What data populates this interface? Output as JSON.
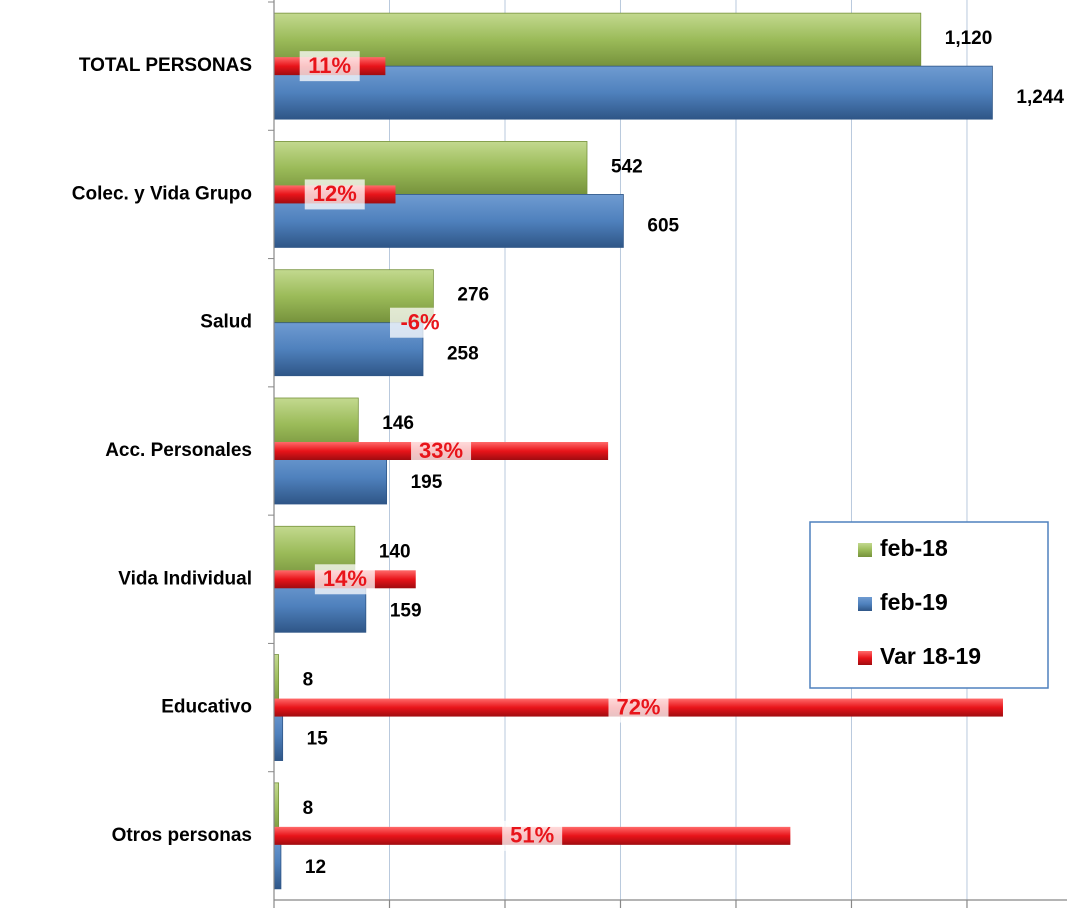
{
  "chart_data": {
    "type": "bar",
    "orientation": "horizontal",
    "categories": [
      "TOTAL PERSONAS",
      "Colec. y Vida Grupo",
      "Salud",
      "Acc. Personales",
      "Vida Individual",
      "Educativo",
      "Otros personas"
    ],
    "series": [
      {
        "name": "feb-18",
        "color": "#9bbb59",
        "values": [
          1120,
          542,
          276,
          146,
          140,
          8,
          8
        ],
        "value_labels": [
          "1,120",
          "542",
          "276",
          "146",
          "140",
          "8",
          "8"
        ]
      },
      {
        "name": "feb-19",
        "color": "#4f81bd",
        "values": [
          1244,
          605,
          258,
          195,
          159,
          15,
          12
        ],
        "value_labels": [
          "1,244",
          "605",
          "258",
          "195",
          "159",
          "15",
          "12"
        ]
      },
      {
        "name": "Var 18-19",
        "color": "#e8141a",
        "axis": "y2",
        "values": [
          11,
          12,
          -6,
          33,
          14,
          72,
          51
        ],
        "value_labels": [
          "11%",
          "12%",
          "-6%",
          "33%",
          "14%",
          "72%",
          "51%"
        ]
      }
    ],
    "xlim": [
      0,
      1350
    ],
    "xticks": [
      0,
      200,
      400,
      600,
      800,
      1000,
      1200
    ],
    "y2lim": [
      0,
      77
    ],
    "grid": true,
    "legend": "right"
  }
}
